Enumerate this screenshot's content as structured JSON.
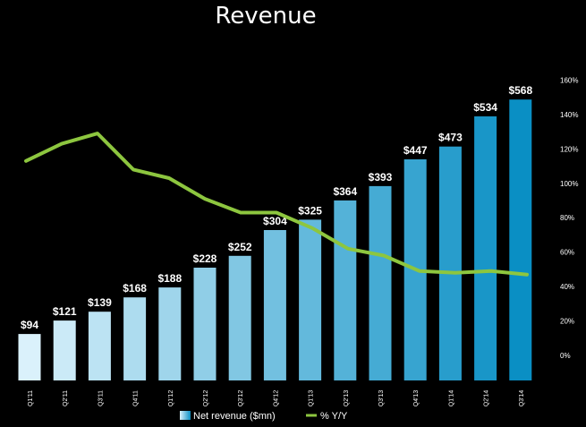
{
  "chart_data": {
    "type": "bar",
    "title": "Revenue",
    "categories": [
      "Q1'11",
      "Q2'11",
      "Q3'11",
      "Q4'11",
      "Q1'12",
      "Q2'12",
      "Q3'12",
      "Q4'12",
      "Q1'13",
      "Q2'13",
      "Q3'13",
      "Q4'13",
      "Q1'14",
      "Q2'14",
      "Q3'14"
    ],
    "series": [
      {
        "name": "Net revenue ($mn)",
        "type": "bar",
        "values": [
          94,
          121,
          139,
          168,
          188,
          228,
          252,
          304,
          325,
          364,
          393,
          447,
          473,
          534,
          568
        ],
        "labels": [
          "$94",
          "$121",
          "$139",
          "$168",
          "$188",
          "$228",
          "$252",
          "$304",
          "$325",
          "$364",
          "$393",
          "$447",
          "$473",
          "$534",
          "$568"
        ]
      },
      {
        "name": "% Y/Y",
        "type": "line",
        "axis": "right",
        "values": [
          113,
          123,
          129,
          108,
          103,
          91,
          83,
          83,
          74,
          62,
          58,
          49,
          48,
          49,
          47
        ]
      }
    ],
    "y_right": {
      "ticks": [
        0,
        20,
        40,
        60,
        80,
        100,
        120,
        140,
        160
      ],
      "tick_labels": [
        "0%",
        "20%",
        "40%",
        "60%",
        "80%",
        "100%",
        "120%",
        "140%",
        "160%"
      ],
      "ylim": [
        0,
        160
      ]
    },
    "legend": [
      "Net revenue ($mn)",
      "% Y/Y"
    ],
    "legend_position": "bottom-center",
    "colors": {
      "bar_light": "#daf1fb",
      "bar_dark": "#0a8fc4",
      "line": "#8dc63f",
      "background": "#000000",
      "text": "#ffffff"
    }
  }
}
